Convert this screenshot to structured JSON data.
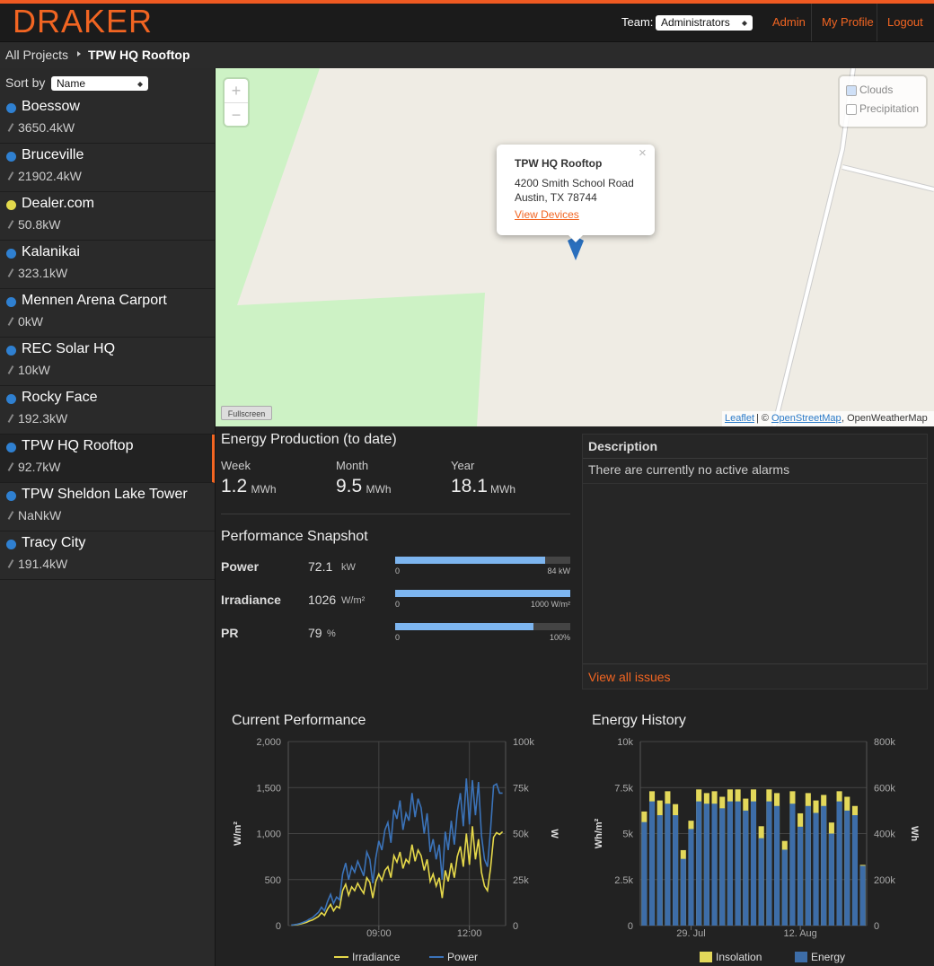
{
  "header": {
    "logo": "DRAKER",
    "team_label": "Team:",
    "team_select": "Administrators",
    "nav": [
      "Admin",
      "My Profile",
      "Logout"
    ]
  },
  "breadcrumb": {
    "root": "All Projects",
    "current": "TPW HQ Rooftop"
  },
  "sidebar": {
    "sort_label": "Sort by",
    "sort_select": "Name",
    "projects": [
      {
        "name": "Boessow",
        "power": "3650.4kW",
        "status_color": "#2f80d1"
      },
      {
        "name": "Bruceville",
        "power": "21902.4kW",
        "status_color": "#2f80d1"
      },
      {
        "name": "Dealer.com",
        "power": "50.8kW",
        "status_color": "#e2d94c"
      },
      {
        "name": "Kalanikai",
        "power": "323.1kW",
        "status_color": "#2f80d1"
      },
      {
        "name": "Mennen Arena Carport",
        "power": "0kW",
        "status_color": "#2f80d1"
      },
      {
        "name": "REC Solar HQ",
        "power": "10kW",
        "status_color": "#2f80d1"
      },
      {
        "name": "Rocky Face",
        "power": "192.3kW",
        "status_color": "#2f80d1"
      },
      {
        "name": "TPW HQ Rooftop",
        "power": "92.7kW",
        "status_color": "#2f80d1"
      },
      {
        "name": "TPW Sheldon Lake Tower",
        "power": "NaNkW",
        "status_color": "#2f80d1"
      },
      {
        "name": "Tracy City",
        "power": "191.4kW",
        "status_color": "#2f80d1"
      }
    ]
  },
  "map": {
    "zoom": [
      "+",
      "−"
    ],
    "layers": [
      "Clouds",
      "Precipitation"
    ],
    "popup": {
      "title": "TPW HQ Rooftop",
      "address": [
        "4200 Smith School Road",
        "Austin, TX 78744"
      ],
      "link": "View Devices",
      "close": "×"
    },
    "fullscreen": "Fullscreen",
    "attribution": [
      "Leaflet",
      "| ©",
      "OpenStreetMap",
      ", OpenWeatherMap"
    ]
  },
  "energy_production": {
    "title": "Energy Production (to date)",
    "items": [
      {
        "label": "Week",
        "value": 1.2,
        "unit": "MWh"
      },
      {
        "label": "Month",
        "value": 9.5,
        "unit": "MWh"
      },
      {
        "label": "Year",
        "value": 18.1,
        "unit": "MWh"
      }
    ]
  },
  "performance_snapshot": {
    "title": "Performance Snapshot",
    "bar_color": "#7db5ef",
    "rows": [
      {
        "label": "Power",
        "value": 72.1,
        "unit": "kW",
        "scale_min": 0,
        "scale_max": {
          "value": 84,
          "label": "84 kW"
        }
      },
      {
        "label": "Irradiance",
        "value": 1026,
        "unit": "W/m²",
        "scale_min": 0,
        "scale_max": {
          "value": 1000,
          "label": "1000 W/m²"
        }
      },
      {
        "label": "PR",
        "value": 79,
        "unit": "%",
        "scale_min": 0,
        "scale_max": {
          "value": 100,
          "label": "100%"
        }
      }
    ]
  },
  "description": {
    "header": "Description",
    "text": "There are currently no active alarms",
    "link": "View all issues"
  },
  "chart_data": [
    {
      "type": "line",
      "title": "Current Performance",
      "y_label": "W/m²",
      "y2_label": "W",
      "x": [
        6.1,
        6.2,
        6.3,
        6.4,
        6.5,
        6.6,
        6.7,
        6.8,
        6.9,
        7,
        7.1,
        7.2,
        7.3,
        7.4,
        7.5,
        7.6,
        7.7,
        7.8,
        7.9,
        8,
        8.1,
        8.2,
        8.3,
        8.4,
        8.5,
        8.6,
        8.7,
        8.8,
        8.9,
        9,
        9.1,
        9.2,
        9.3,
        9.4,
        9.5,
        9.6,
        9.7,
        9.8,
        9.9,
        10,
        10.1,
        10.2,
        10.3,
        10.4,
        10.5,
        10.6,
        10.7,
        10.8,
        10.9,
        11,
        11.1,
        11.2,
        11.3,
        11.4,
        11.5,
        11.6,
        11.7,
        11.8,
        11.9,
        12,
        12.1,
        12.2,
        12.3,
        12.4,
        12.5,
        12.6,
        12.7,
        12.8,
        12.9,
        13,
        13.1
      ],
      "xlim": [
        6,
        13.2
      ],
      "xticks": [
        {
          "value": 9,
          "label": "09:00"
        },
        {
          "value": 12,
          "label": "12:00"
        }
      ],
      "ylim": [
        0,
        2000
      ],
      "yticks": [
        0,
        500,
        {
          "value": 1000,
          "label": "1,000"
        },
        {
          "value": 1500,
          "label": "1,500"
        },
        {
          "value": 2000,
          "label": "2,000"
        }
      ],
      "y2lim": [
        0,
        100000
      ],
      "y2ticks": [
        0,
        {
          "value": 25000,
          "label": "25k"
        },
        {
          "value": 50000,
          "label": "50k"
        },
        {
          "value": 75000,
          "label": "75k"
        },
        {
          "value": 100000,
          "label": "100k"
        }
      ],
      "grid": true,
      "xgrid": true,
      "series": [
        {
          "name": "Irradiance",
          "color": "#e5d84a",
          "values": [
            5,
            8,
            12,
            18,
            25,
            35,
            50,
            60,
            80,
            100,
            140,
            110,
            180,
            230,
            160,
            210,
            190,
            380,
            450,
            330,
            420,
            380,
            460,
            400,
            350,
            520,
            470,
            300,
            480,
            560,
            490,
            600,
            640,
            520,
            760,
            690,
            800,
            620,
            720,
            680,
            880,
            700,
            820,
            760,
            600,
            720,
            480,
            560,
            430,
            520,
            300,
            600,
            480,
            680,
            520,
            750,
            860,
            640,
            1000,
            660,
            1080,
            720,
            940,
            580,
            430,
            380,
            620,
            960,
            1010,
            990,
            1020
          ]
        },
        {
          "name": "Power",
          "color": "#3b73b9",
          "axis": "y2",
          "values": [
            300,
            500,
            800,
            1200,
            1800,
            2500,
            3500,
            4300,
            5800,
            7200,
            10000,
            8000,
            13000,
            17000,
            12000,
            15500,
            14000,
            28000,
            34000,
            25000,
            32000,
            29000,
            35000,
            31000,
            27000,
            40000,
            36000,
            23000,
            37000,
            46000,
            41000,
            52000,
            56000,
            45000,
            63000,
            58000,
            68000,
            52000,
            61000,
            57000,
            72000,
            59000,
            69000,
            64000,
            50000,
            61000,
            40000,
            47000,
            36000,
            44000,
            25000,
            51000,
            41000,
            57000,
            44000,
            62000,
            72000,
            54000,
            80000,
            55000,
            79000,
            60000,
            78000,
            49000,
            36000,
            32000,
            52000,
            76000,
            77000,
            72000,
            72000
          ]
        }
      ]
    },
    {
      "type": "bar",
      "title": "Energy History",
      "y_label": "Wh/m²",
      "y2_label": "Wh",
      "categories": [
        null,
        null,
        null,
        null,
        null,
        null,
        "29. Jul",
        null,
        null,
        null,
        null,
        null,
        null,
        null,
        null,
        null,
        null,
        null,
        null,
        null,
        "12. Aug",
        null,
        null,
        null,
        null,
        null,
        null,
        null,
        null
      ],
      "ylim": [
        0,
        10000
      ],
      "yticks": [
        0,
        {
          "value": 2500,
          "label": "2.5k"
        },
        {
          "value": 5000,
          "label": "5k"
        },
        {
          "value": 7500,
          "label": "7.5k"
        },
        {
          "value": 10000,
          "label": "10k"
        }
      ],
      "y2lim": [
        0,
        800000
      ],
      "y2ticks": [
        0,
        {
          "value": 200000,
          "label": "200k"
        },
        {
          "value": 400000,
          "label": "400k"
        },
        {
          "value": 600000,
          "label": "600k"
        },
        {
          "value": 800000,
          "label": "800k"
        }
      ],
      "grid": true,
      "series": [
        {
          "name": "Insolation",
          "color": "#e3d85a",
          "values": [
            6200,
            7300,
            6800,
            7300,
            6600,
            4100,
            5700,
            7400,
            7200,
            7300,
            7000,
            7400,
            7400,
            6900,
            7400,
            5400,
            7400,
            7200,
            4600,
            7300,
            6100,
            7200,
            6800,
            7100,
            5600,
            7300,
            7000,
            6500,
            3300
          ]
        },
        {
          "name": "Energy",
          "color": "#3d6da8",
          "axis": "y2",
          "values": [
            450000,
            540000,
            480000,
            530000,
            480000,
            290000,
            420000,
            540000,
            530000,
            530000,
            510000,
            540000,
            540000,
            500000,
            540000,
            380000,
            540000,
            520000,
            330000,
            530000,
            430000,
            520000,
            490000,
            520000,
            400000,
            540000,
            500000,
            480000,
            260000
          ]
        }
      ]
    }
  ]
}
